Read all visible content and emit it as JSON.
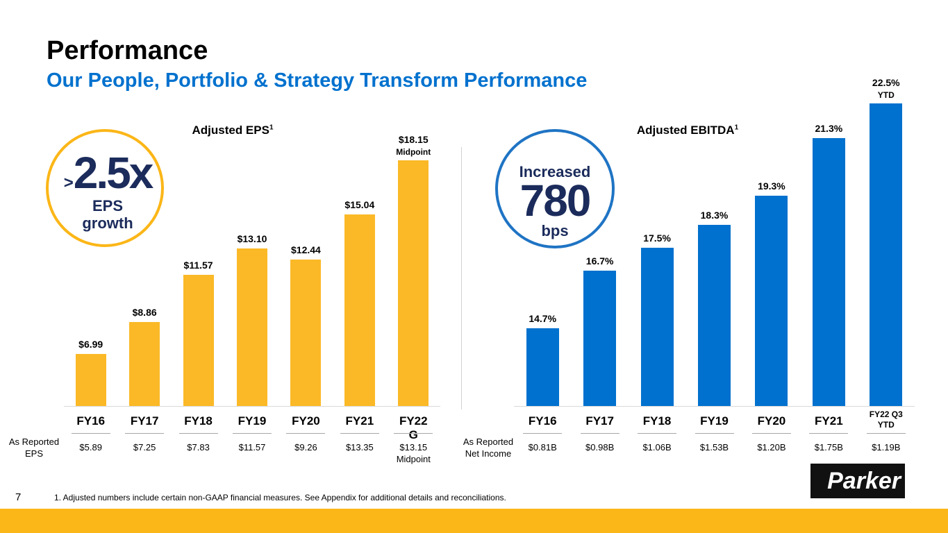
{
  "title": "Performance",
  "subtitle": "Our People, Portfolio & Strategy Transform Performance",
  "eps_badge": {
    "prefix": ">",
    "figure": "2.5x",
    "caption": "EPS growth"
  },
  "ebitda_badge": {
    "top": "Increased",
    "figure": "780",
    "caption": "bps"
  },
  "chart_data": [
    {
      "type": "bar",
      "title": "Adjusted EPS",
      "title_superscript": "1",
      "categories": [
        "FY16",
        "FY17",
        "FY18",
        "FY19",
        "FY20",
        "FY21",
        "FY22 G"
      ],
      "values": [
        6.99,
        8.86,
        11.57,
        13.1,
        12.44,
        15.04,
        18.15
      ],
      "value_labels": [
        "$6.99",
        "$8.86",
        "$11.57",
        "$13.10",
        "$12.44",
        "$15.04",
        "$18.15"
      ],
      "annotations": [
        {
          "index": 6,
          "text": "Midpoint"
        }
      ],
      "color": "#fbb927",
      "ylim": [
        4,
        21
      ],
      "reported_label": "As Reported EPS",
      "reported": [
        "$5.89",
        "$7.25",
        "$7.83",
        "$11.57",
        "$9.26",
        "$13.35",
        "$13.15 Midpoint"
      ]
    },
    {
      "type": "bar",
      "title": "Adjusted EBITDA",
      "title_superscript": "1",
      "categories": [
        "FY16",
        "FY17",
        "FY18",
        "FY19",
        "FY20",
        "FY21",
        "FY22 Q3 YTD"
      ],
      "values": [
        14.7,
        16.7,
        17.5,
        18.3,
        19.3,
        21.3,
        22.5
      ],
      "value_labels": [
        "14.7%",
        "16.7%",
        "17.5%",
        "18.3%",
        "19.3%",
        "21.3%",
        "22.5%"
      ],
      "annotations": [
        {
          "index": 6,
          "text": "YTD"
        }
      ],
      "color": "#0071ce",
      "ylim": [
        12,
        23
      ],
      "reported_label": "As Reported Net Income",
      "reported": [
        "$0.81B",
        "$0.98B",
        "$1.06B",
        "$1.53B",
        "$1.20B",
        "$1.75B",
        "$1.19B"
      ]
    }
  ],
  "page_number": "7",
  "footnote": "1. Adjusted numbers include certain non-GAAP financial measures. See Appendix for additional details and reconciliations.",
  "logo": "Parker"
}
